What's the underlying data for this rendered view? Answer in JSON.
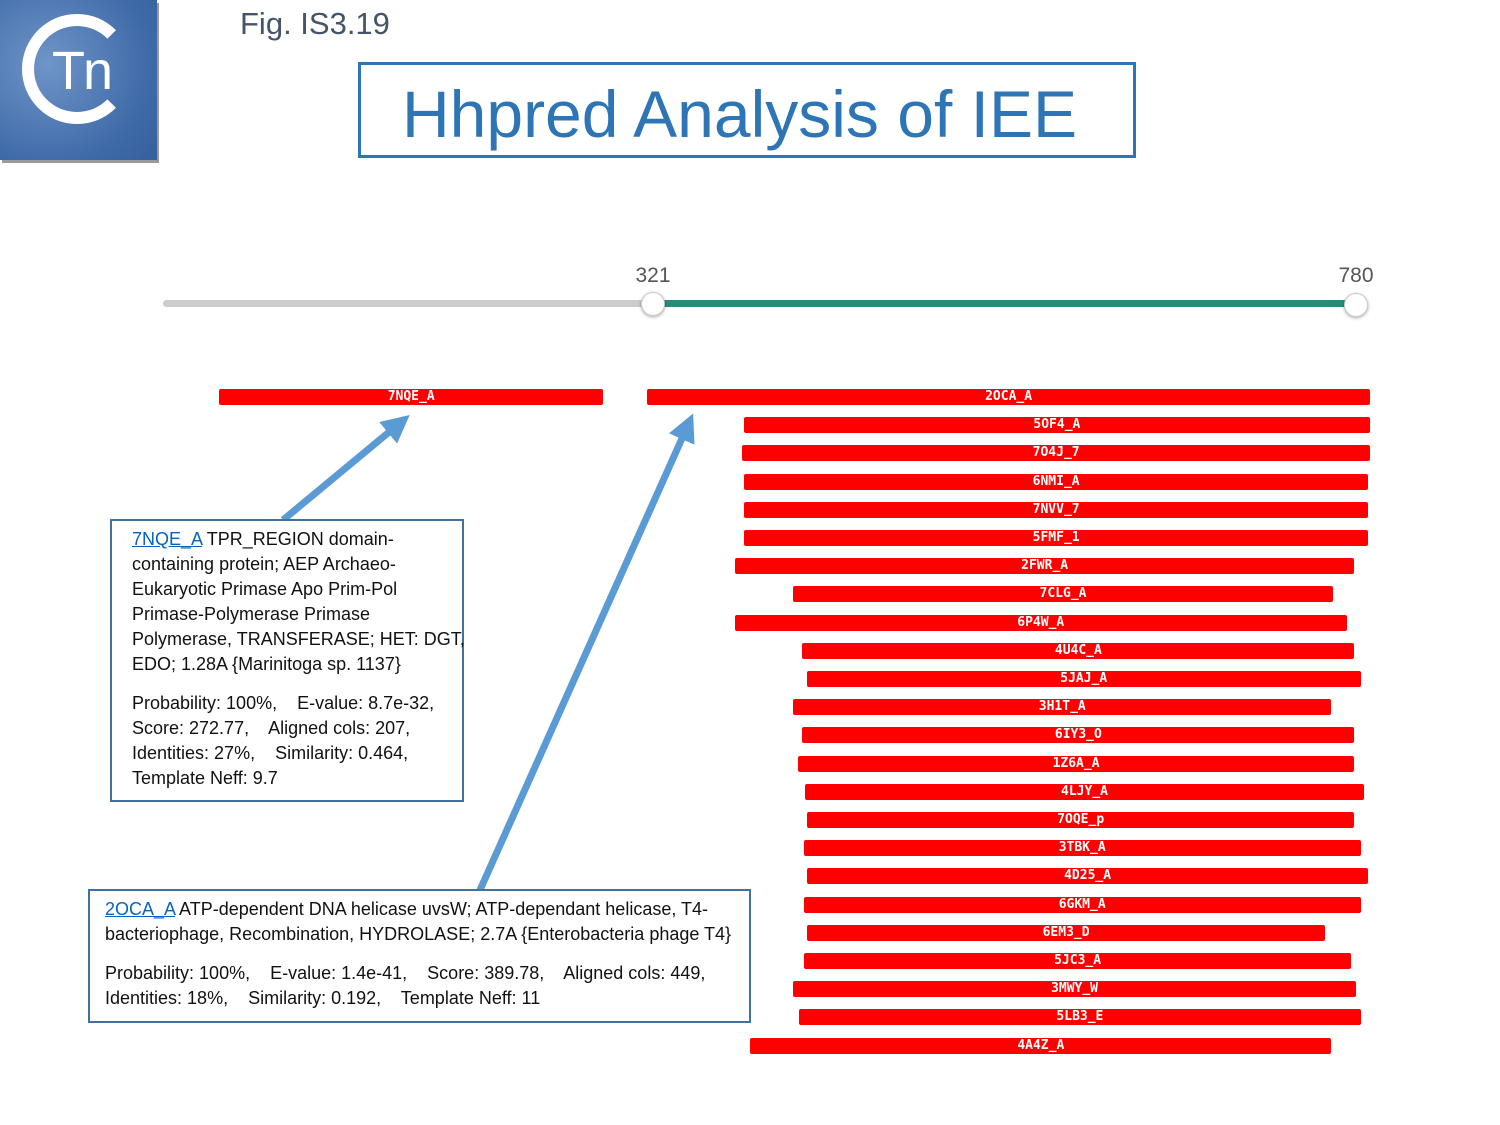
{
  "header": {
    "logo_text": "Tn",
    "figure_label": "Fig. IS3.19",
    "title": "Hhpred Analysis of IEE"
  },
  "range_slider": {
    "min_label": "321",
    "max_label": "780",
    "selected_start": 321,
    "selected_end": 780,
    "colors": {
      "selected": "#2a8a78",
      "unselected": "#cccccc"
    }
  },
  "hit_color": "#ff0000",
  "hits": [
    {
      "id": "7NQE_A",
      "start": 39,
      "end": 289
    },
    {
      "id": "2OCA_A",
      "start": 318,
      "end": 789
    },
    {
      "id": "5OF4_A",
      "start": 381,
      "end": 789
    },
    {
      "id": "7O4J_7",
      "start": 380,
      "end": 789
    },
    {
      "id": "6NMI_A",
      "start": 381,
      "end": 788
    },
    {
      "id": "7NVV_7",
      "start": 381,
      "end": 788
    },
    {
      "id": "5FMF_1",
      "start": 381,
      "end": 788
    },
    {
      "id": "2FWR_A",
      "start": 375,
      "end": 779
    },
    {
      "id": "7CLG_A",
      "start": 413,
      "end": 765
    },
    {
      "id": "6P4W_A",
      "start": 375,
      "end": 774
    },
    {
      "id": "4U4C_A",
      "start": 419,
      "end": 779
    },
    {
      "id": "5JAJ_A",
      "start": 422,
      "end": 783
    },
    {
      "id": "3H1T_A",
      "start": 413,
      "end": 764
    },
    {
      "id": "6IY3_O",
      "start": 419,
      "end": 779
    },
    {
      "id": "1Z6A_A",
      "start": 416,
      "end": 779
    },
    {
      "id": "4LJY_A",
      "start": 421,
      "end": 785
    },
    {
      "id": "7OQE_p",
      "start": 422,
      "end": 779
    },
    {
      "id": "3TBK_A",
      "start": 420,
      "end": 783
    },
    {
      "id": "4D25_A",
      "start": 422,
      "end": 788
    },
    {
      "id": "6GKM_A",
      "start": 420,
      "end": 783
    },
    {
      "id": "6EM3_D",
      "start": 422,
      "end": 760
    },
    {
      "id": "5JC3_A",
      "start": 420,
      "end": 777
    },
    {
      "id": "3MWY_W",
      "start": 413,
      "end": 780
    },
    {
      "id": "5LB3_E",
      "start": 417,
      "end": 783
    },
    {
      "id": "4A4Z_A",
      "start": 385,
      "end": 764
    }
  ],
  "callouts": [
    {
      "link": "7NQE_A",
      "desc_lines": [
        " TPR_REGION domain-",
        "containing protein; AEP Archaeo-",
        "Eukaryotic Primase Apo Prim-Pol",
        "Primase-Polymerase Primase",
        "Polymerase, TRANSFERASE; HET: DGT,",
        "EDO; 1.28A {Marinitoga sp. 1137}"
      ],
      "stats_lines": [
        "Probability: 100%,    E-value: 8.7e-32,",
        "Score: 272.77,    Aligned cols: 207,",
        "Identities: 27%,    Similarity: 0.464,",
        "Template Neff: 9.7"
      ]
    },
    {
      "link": "2OCA_A",
      "desc_lines": [
        " ATP-dependent DNA helicase uvsW; ATP-dependant helicase, T4-",
        "bacteriophage, Recombination, HYDROLASE; 2.7A {Enterobacteria phage T4}"
      ],
      "stats_lines": [
        "Probability: 100%,    E-value: 1.4e-41,    Score: 389.78,    Aligned cols: 449,",
        "Identities: 18%,    Similarity: 0.192,    Template Neff: 11"
      ]
    }
  ],
  "arrow_color": "#5b9bd5"
}
